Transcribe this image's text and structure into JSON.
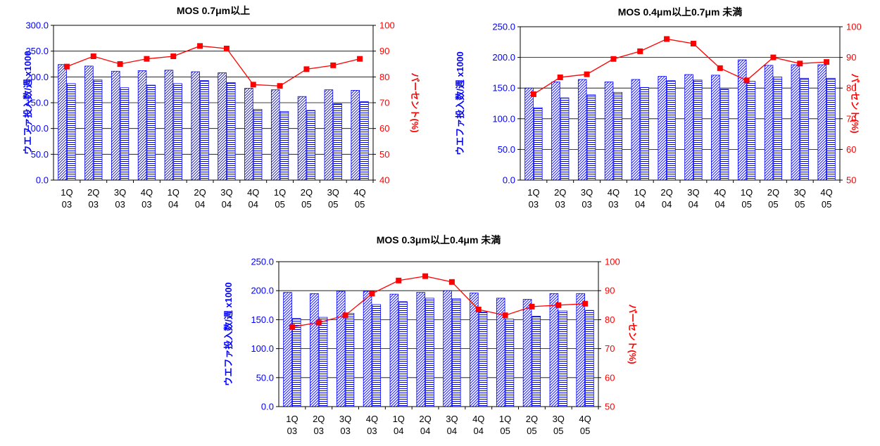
{
  "page": {
    "background": "#ffffff"
  },
  "style": {
    "left_axis_color": "#0000ff",
    "right_axis_color": "#ff0000",
    "bar_fill": "#ffffff",
    "bar_stroke": "#0000ff",
    "line_color": "#ff0000",
    "grid_color": "#000000"
  },
  "chart_data": [
    {
      "type": "bar",
      "title": "MOS 0.7μm以上",
      "ylabel": "ウエファ投入数/週 x1000",
      "y2label": "パーセント(%)",
      "categories": [
        "1Q 03",
        "2Q 03",
        "3Q 03",
        "4Q 03",
        "1Q 04",
        "2Q 04",
        "3Q 04",
        "4Q 04",
        "1Q 05",
        "2Q 05",
        "3Q 05",
        "4Q 05"
      ],
      "ylim": [
        0,
        300
      ],
      "yticks": [
        "0.0",
        "50.0",
        "100.0",
        "150.0",
        "200.0",
        "250.0",
        "300.0"
      ],
      "y2lim": [
        40,
        100
      ],
      "y2ticks": [
        "40",
        "50",
        "60",
        "70",
        "80",
        "90",
        "100"
      ],
      "grid": true,
      "series": [
        {
          "style": "diagonal-hatch",
          "axis": "left",
          "values": [
            224,
            221,
            211,
            212,
            213,
            210,
            208,
            178,
            175,
            162,
            175,
            174
          ]
        },
        {
          "style": "horizontal-hatch",
          "axis": "left",
          "values": [
            187,
            194,
            179,
            184,
            187,
            193,
            189,
            137,
            133,
            135,
            148,
            152
          ]
        },
        {
          "style": "line-square-markers",
          "axis": "right",
          "values": [
            84,
            88,
            85,
            87,
            88,
            92,
            91,
            77,
            76.5,
            83,
            84.5,
            87
          ]
        }
      ]
    },
    {
      "type": "bar",
      "title": "MOS 0.4μm以上0.7μm 未満",
      "ylabel": "ウエファ投入数/週 x1000",
      "y2label": "パーセント(%)",
      "categories": [
        "1Q 03",
        "2Q 03",
        "3Q 03",
        "4Q 03",
        "1Q 04",
        "2Q 04",
        "3Q 04",
        "4Q 04",
        "1Q 05",
        "2Q 05",
        "3Q 05",
        "4Q 05"
      ],
      "ylim": [
        0,
        250
      ],
      "yticks": [
        "0.0",
        "50.0",
        "100.0",
        "150.0",
        "200.0",
        "250.0"
      ],
      "y2lim": [
        50,
        100
      ],
      "y2ticks": [
        "50",
        "60",
        "70",
        "80",
        "90",
        "100"
      ],
      "grid": true,
      "series": [
        {
          "style": "diagonal-hatch",
          "axis": "left",
          "values": [
            150,
            160,
            164,
            160,
            164,
            169,
            172,
            171,
            196,
            187,
            188,
            188
          ]
        },
        {
          "style": "horizontal-hatch",
          "axis": "left",
          "values": [
            118,
            134,
            139,
            143,
            151,
            162,
            163,
            148,
            161,
            168,
            166,
            166
          ]
        },
        {
          "style": "line-square-markers",
          "axis": "right",
          "values": [
            78,
            83.5,
            84.5,
            89.5,
            92,
            96,
            94.5,
            86.5,
            82.5,
            90,
            88,
            88.5
          ]
        }
      ]
    },
    {
      "type": "bar",
      "title": "MOS 0.3μm以上0.4μm 未満",
      "ylabel": "ウエファ投入数/週 x1000",
      "y2label": "パーセント(%)",
      "categories": [
        "1Q 03",
        "2Q 03",
        "3Q 03",
        "4Q 03",
        "1Q 04",
        "2Q 04",
        "3Q 04",
        "4Q 04",
        "1Q 05",
        "2Q 05",
        "3Q 05",
        "4Q 05"
      ],
      "ylim": [
        0,
        250
      ],
      "yticks": [
        "0.0",
        "50.0",
        "100.0",
        "150.0",
        "200.0",
        "250.0"
      ],
      "y2lim": [
        50,
        100
      ],
      "y2ticks": [
        "50",
        "60",
        "70",
        "80",
        "90",
        "100"
      ],
      "grid": true,
      "series": [
        {
          "style": "diagonal-hatch",
          "axis": "left",
          "values": [
            197,
            195,
            199,
            199,
            194,
            197,
            200,
            196,
            187,
            185,
            195,
            195
          ]
        },
        {
          "style": "horizontal-hatch",
          "axis": "left",
          "values": [
            152,
            154,
            161,
            176,
            181,
            187,
            186,
            163,
            151,
            156,
            165,
            166
          ]
        },
        {
          "style": "line-square-markers",
          "axis": "right",
          "values": [
            77.5,
            79,
            81.5,
            89,
            93.5,
            95,
            93,
            83.5,
            81.5,
            84.5,
            85,
            85.5
          ]
        }
      ]
    }
  ]
}
